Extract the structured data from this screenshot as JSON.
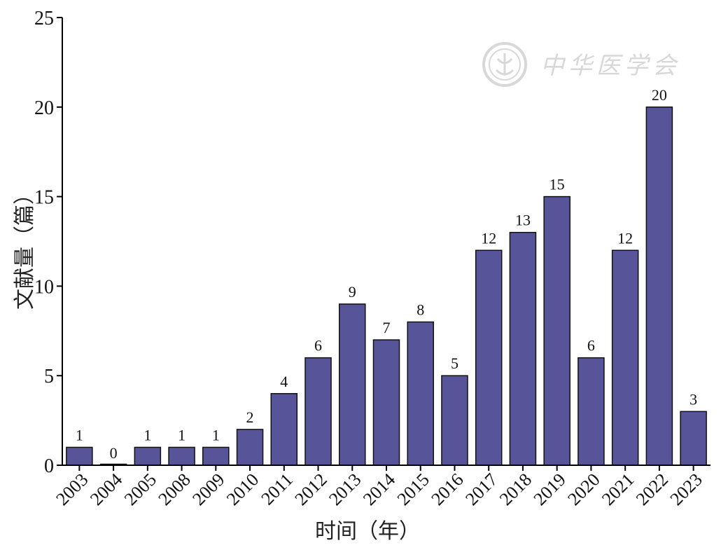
{
  "watermark": {
    "text": "中华医学会"
  },
  "chart_data": {
    "type": "bar",
    "title": "",
    "xlabel": "时间（年）",
    "ylabel": "文献量（篇）",
    "categories": [
      "2003",
      "2004",
      "2005",
      "2008",
      "2009",
      "2010",
      "2011",
      "2012",
      "2013",
      "2014",
      "2015",
      "2016",
      "2017",
      "2018",
      "2019",
      "2020",
      "2021",
      "2022",
      "2023"
    ],
    "values": [
      1,
      0,
      1,
      1,
      1,
      2,
      4,
      6,
      9,
      7,
      8,
      5,
      12,
      13,
      15,
      6,
      12,
      20,
      3
    ],
    "ylim": [
      0,
      25
    ],
    "yticks": [
      0,
      5,
      10,
      15,
      20,
      25
    ],
    "bar_color": "#58549a",
    "grid": false
  }
}
